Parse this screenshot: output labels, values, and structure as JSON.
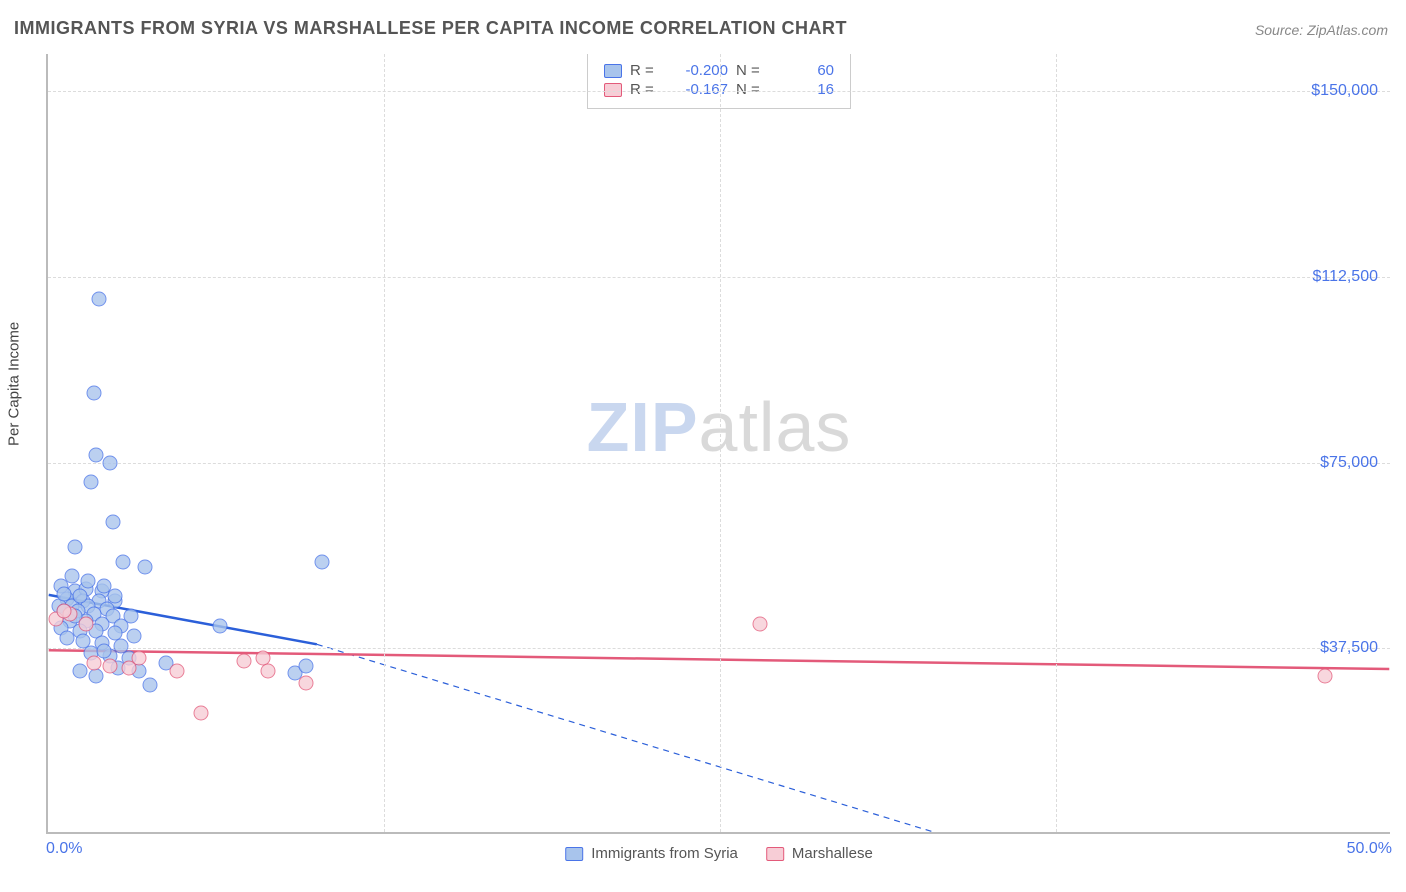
{
  "title": "IMMIGRANTS FROM SYRIA VS MARSHALLESE PER CAPITA INCOME CORRELATION CHART",
  "source_label": "Source: ZipAtlas.com",
  "y_axis_title": "Per Capita Income",
  "watermark": {
    "zip": "ZIP",
    "atlas": "atlas"
  },
  "chart": {
    "type": "scatter",
    "xlim": [
      0,
      50
    ],
    "ylim": [
      0,
      157500
    ],
    "x_ticks": [
      0,
      50
    ],
    "x_tick_labels": [
      "0.0%",
      "50.0%"
    ],
    "x_minor_ticks": [
      12.5,
      25,
      37.5
    ],
    "y_ticks": [
      37500,
      75000,
      112500,
      150000
    ],
    "y_tick_labels": [
      "$37,500",
      "$75,000",
      "$112,500",
      "$150,000"
    ],
    "background_color": "#ffffff",
    "grid_color": "#dcdcdc",
    "axis_color": "#bbbbbb",
    "tick_label_color": "#4a74e8",
    "tick_fontsize": 16,
    "marker_radius": 7.5,
    "series": [
      {
        "name": "Immigrants from Syria",
        "color_fill": "#a8c4ec",
        "color_stroke": "#4a74e8",
        "R": "-0.200",
        "N": "60",
        "trend": {
          "solid": {
            "x1": 0,
            "y1": 48000,
            "x2": 10,
            "y2": 38000
          },
          "dashed": {
            "x1": 10,
            "y1": 38000,
            "x2": 33,
            "y2": 0
          },
          "stroke": "#2b5fd9",
          "stroke_width": 2.5
        },
        "points": [
          {
            "x": 1.9,
            "y": 108000
          },
          {
            "x": 1.7,
            "y": 89000
          },
          {
            "x": 1.8,
            "y": 76500
          },
          {
            "x": 2.3,
            "y": 75000
          },
          {
            "x": 1.6,
            "y": 71000
          },
          {
            "x": 2.4,
            "y": 63000
          },
          {
            "x": 1.0,
            "y": 58000
          },
          {
            "x": 2.8,
            "y": 55000
          },
          {
            "x": 3.6,
            "y": 54000
          },
          {
            "x": 10.2,
            "y": 55000
          },
          {
            "x": 0.5,
            "y": 50000
          },
          {
            "x": 1.0,
            "y": 49000
          },
          {
            "x": 1.4,
            "y": 49500
          },
          {
            "x": 2.0,
            "y": 49000
          },
          {
            "x": 0.7,
            "y": 47500
          },
          {
            "x": 1.3,
            "y": 47000
          },
          {
            "x": 1.9,
            "y": 47000
          },
          {
            "x": 2.5,
            "y": 47000
          },
          {
            "x": 0.4,
            "y": 46000
          },
          {
            "x": 0.9,
            "y": 46000
          },
          {
            "x": 1.5,
            "y": 46000
          },
          {
            "x": 2.2,
            "y": 45500
          },
          {
            "x": 0.6,
            "y": 45000
          },
          {
            "x": 1.1,
            "y": 45000
          },
          {
            "x": 1.7,
            "y": 44500
          },
          {
            "x": 2.4,
            "y": 44000
          },
          {
            "x": 3.1,
            "y": 44000
          },
          {
            "x": 0.8,
            "y": 43000
          },
          {
            "x": 1.4,
            "y": 43000
          },
          {
            "x": 2.0,
            "y": 42500
          },
          {
            "x": 2.7,
            "y": 42000
          },
          {
            "x": 0.5,
            "y": 41500
          },
          {
            "x": 1.2,
            "y": 41000
          },
          {
            "x": 1.8,
            "y": 41000
          },
          {
            "x": 2.5,
            "y": 40500
          },
          {
            "x": 3.2,
            "y": 40000
          },
          {
            "x": 6.4,
            "y": 42000
          },
          {
            "x": 0.7,
            "y": 39500
          },
          {
            "x": 1.3,
            "y": 39000
          },
          {
            "x": 2.0,
            "y": 38500
          },
          {
            "x": 2.7,
            "y": 38000
          },
          {
            "x": 1.6,
            "y": 36500
          },
          {
            "x": 2.3,
            "y": 36000
          },
          {
            "x": 3.0,
            "y": 35500
          },
          {
            "x": 4.4,
            "y": 34500
          },
          {
            "x": 2.6,
            "y": 33500
          },
          {
            "x": 3.4,
            "y": 33000
          },
          {
            "x": 9.2,
            "y": 32500
          },
          {
            "x": 9.6,
            "y": 34000
          },
          {
            "x": 3.8,
            "y": 30000
          },
          {
            "x": 1.2,
            "y": 33000
          },
          {
            "x": 1.8,
            "y": 32000
          },
          {
            "x": 2.5,
            "y": 48000
          },
          {
            "x": 0.9,
            "y": 52000
          },
          {
            "x": 1.5,
            "y": 51000
          },
          {
            "x": 2.1,
            "y": 50000
          },
          {
            "x": 0.6,
            "y": 48500
          },
          {
            "x": 1.2,
            "y": 48000
          },
          {
            "x": 1.0,
            "y": 44000
          },
          {
            "x": 2.1,
            "y": 37000
          }
        ]
      },
      {
        "name": "Marshallese",
        "color_fill": "#f7cdd6",
        "color_stroke": "#e35a7a",
        "R": "-0.167",
        "N": "16",
        "trend": {
          "solid": {
            "x1": 0,
            "y1": 36800,
            "x2": 50,
            "y2": 33000
          },
          "stroke": "#e35a7a",
          "stroke_width": 2.5
        },
        "points": [
          {
            "x": 0.8,
            "y": 44500
          },
          {
            "x": 0.3,
            "y": 43500
          },
          {
            "x": 1.4,
            "y": 42500
          },
          {
            "x": 1.7,
            "y": 34500
          },
          {
            "x": 2.3,
            "y": 34000
          },
          {
            "x": 3.4,
            "y": 35500
          },
          {
            "x": 3.0,
            "y": 33500
          },
          {
            "x": 4.8,
            "y": 33000
          },
          {
            "x": 7.3,
            "y": 35000
          },
          {
            "x": 8.0,
            "y": 35500
          },
          {
            "x": 8.2,
            "y": 33000
          },
          {
            "x": 9.6,
            "y": 30500
          },
          {
            "x": 5.7,
            "y": 24500
          },
          {
            "x": 26.5,
            "y": 42500
          },
          {
            "x": 47.5,
            "y": 32000
          },
          {
            "x": 0.6,
            "y": 45000
          }
        ]
      }
    ]
  }
}
